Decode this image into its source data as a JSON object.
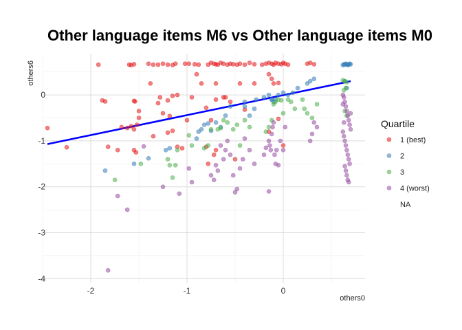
{
  "chart_data": {
    "type": "scatter",
    "title": "Other language items M6 vs Other language items M0",
    "xlabel": "others0",
    "ylabel": "others6",
    "xlim": [
      -2.5,
      0.85
    ],
    "ylim": [
      -4.1,
      0.9
    ],
    "x_ticks": [
      -2,
      -1,
      0
    ],
    "y_ticks": [
      -4,
      -3,
      -2,
      -1,
      0
    ],
    "grid": true,
    "legend_title": "Quartile",
    "legend_position": "right",
    "series": [
      {
        "name": "1 (best)",
        "color": "#E41A1C",
        "points": [
          [
            -2.45,
            -0.72
          ],
          [
            -2.25,
            -1.14
          ],
          [
            -1.92,
            0.66
          ],
          [
            -1.88,
            -0.12
          ],
          [
            -1.85,
            -0.14
          ],
          [
            -1.82,
            -1.13
          ],
          [
            -1.6,
            0.66
          ],
          [
            -1.58,
            0.65
          ],
          [
            -1.55,
            0.67
          ],
          [
            -1.55,
            -0.13
          ],
          [
            -1.54,
            -0.14
          ],
          [
            -1.68,
            -0.7
          ],
          [
            -1.62,
            -0.72
          ],
          [
            -1.58,
            -0.68
          ],
          [
            -1.55,
            -0.75
          ],
          [
            -1.52,
            -0.65
          ],
          [
            -1.5,
            -0.5
          ],
          [
            -1.55,
            -1.2
          ],
          [
            -1.53,
            -1.25
          ],
          [
            -1.72,
            -1.2
          ],
          [
            -1.4,
            0.68
          ],
          [
            -1.38,
            0.25
          ],
          [
            -1.35,
            0.66
          ],
          [
            -1.3,
            0.66
          ],
          [
            -1.25,
            0.68
          ],
          [
            -1.2,
            0.66
          ],
          [
            -1.15,
            0.65
          ],
          [
            -1.12,
            0.68
          ],
          [
            -1.28,
            -0.05
          ],
          [
            -1.2,
            -0.12
          ],
          [
            -1.15,
            -0.02
          ],
          [
            -1.1,
            0.0
          ],
          [
            -1.3,
            -0.18
          ],
          [
            -1.25,
            -0.4
          ],
          [
            -1.18,
            -0.46
          ],
          [
            -1.2,
            -0.82
          ],
          [
            -1.15,
            -0.78
          ],
          [
            -1.1,
            -1.13
          ],
          [
            -1.05,
            -1.16
          ],
          [
            -1.02,
            0.68
          ],
          [
            -0.98,
            0.68
          ],
          [
            -0.92,
            0.67
          ],
          [
            -0.88,
            0.66
          ],
          [
            -0.78,
            0.66
          ],
          [
            -0.75,
            0.7
          ],
          [
            -0.72,
            0.68
          ],
          [
            -0.7,
            0.67
          ],
          [
            -0.68,
            0.66
          ],
          [
            -0.65,
            0.7
          ],
          [
            -0.62,
            0.68
          ],
          [
            -0.58,
            0.66
          ],
          [
            -0.55,
            0.68
          ],
          [
            -0.52,
            0.67
          ],
          [
            -0.48,
            0.66
          ],
          [
            -0.45,
            0.68
          ],
          [
            -0.4,
            0.66
          ],
          [
            -0.35,
            0.7
          ],
          [
            -0.3,
            0.67
          ],
          [
            -0.22,
            0.66
          ],
          [
            -0.18,
            0.68
          ],
          [
            -0.15,
            0.7
          ],
          [
            -0.12,
            0.68
          ],
          [
            -0.1,
            0.66
          ],
          [
            -0.08,
            0.7
          ],
          [
            -0.05,
            0.68
          ],
          [
            -0.02,
            0.67
          ],
          [
            0.0,
            0.7
          ],
          [
            0.02,
            0.68
          ],
          [
            0.05,
            0.66
          ],
          [
            0.25,
            0.68
          ],
          [
            0.28,
            0.7
          ],
          [
            0.32,
            0.67
          ],
          [
            -0.9,
            0.45
          ],
          [
            -0.85,
            0.25
          ],
          [
            -0.7,
            0.25
          ],
          [
            -0.6,
            -0.05
          ],
          [
            -0.45,
            0.25
          ],
          [
            -0.3,
            0.25
          ],
          [
            -0.15,
            0.45
          ],
          [
            -0.12,
            0.35
          ],
          [
            -0.1,
            0.25
          ],
          [
            -0.05,
            0.26
          ],
          [
            -0.95,
            -0.05
          ],
          [
            -0.8,
            -0.28
          ],
          [
            -0.75,
            -0.55
          ],
          [
            -0.55,
            -0.15
          ],
          [
            -0.7,
            -0.1
          ],
          [
            -0.62,
            -0.05
          ],
          [
            -0.4,
            -0.32
          ],
          [
            -0.8,
            -1.13
          ],
          [
            -0.78,
            -1.5
          ],
          [
            -0.72,
            -1.3
          ],
          [
            -0.7,
            -1.2
          ],
          [
            -0.5,
            -1.4
          ],
          [
            -0.15,
            -0.8
          ],
          [
            -0.05,
            -0.52
          ],
          [
            0.0,
            -1.1
          ],
          [
            -1.0,
            -0.55
          ],
          [
            -1.35,
            -0.9
          ],
          [
            -1.5,
            -0.35
          ]
        ]
      },
      {
        "name": "2",
        "color": "#377EB8",
        "points": [
          [
            -1.85,
            -1.65
          ],
          [
            -1.55,
            -1.5
          ],
          [
            -1.4,
            -1.38
          ],
          [
            -1.22,
            -1.2
          ],
          [
            -1.18,
            -1.16
          ],
          [
            -0.9,
            -0.95
          ],
          [
            -0.88,
            -0.8
          ],
          [
            -0.85,
            -0.75
          ],
          [
            -0.82,
            -0.65
          ],
          [
            -0.78,
            -0.62
          ],
          [
            -0.75,
            -0.78
          ],
          [
            -0.7,
            -0.6
          ],
          [
            -0.65,
            -0.7
          ],
          [
            -0.6,
            -0.45
          ],
          [
            -0.55,
            -0.25
          ],
          [
            -0.4,
            -0.25
          ],
          [
            -0.35,
            -0.45
          ],
          [
            -0.3,
            -0.3
          ],
          [
            -0.28,
            -0.1
          ],
          [
            -0.2,
            -0.05
          ],
          [
            -0.15,
            0.0
          ],
          [
            -0.12,
            -0.1
          ],
          [
            -0.1,
            -0.15
          ],
          [
            -0.08,
            -0.1
          ],
          [
            -0.05,
            0.0
          ],
          [
            0.0,
            0.05
          ],
          [
            0.05,
            0.0
          ],
          [
            0.1,
            0.05
          ],
          [
            0.15,
            0.15
          ],
          [
            0.25,
            0.25
          ],
          [
            0.28,
            0.3
          ],
          [
            0.32,
            0.35
          ],
          [
            0.62,
            0.65
          ],
          [
            0.63,
            0.67
          ],
          [
            0.64,
            0.66
          ],
          [
            0.65,
            0.68
          ],
          [
            0.66,
            0.67
          ],
          [
            0.67,
            0.65
          ],
          [
            0.68,
            0.66
          ],
          [
            0.69,
            0.68
          ],
          [
            0.7,
            0.67
          ],
          [
            0.64,
            0.3
          ],
          [
            0.66,
            0.15
          ],
          [
            -0.4,
            -0.15
          ],
          [
            -0.12,
            -0.1
          ]
        ]
      },
      {
        "name": "3",
        "color": "#4DAF4A",
        "points": [
          [
            -1.75,
            -1.85
          ],
          [
            -1.48,
            -1.5
          ],
          [
            -1.2,
            -1.4
          ],
          [
            -1.18,
            -1.53
          ],
          [
            -1.12,
            -1.53
          ],
          [
            -1.1,
            -1.2
          ],
          [
            -0.98,
            -0.88
          ],
          [
            -0.82,
            -1.16
          ],
          [
            -0.78,
            -1.1
          ],
          [
            -0.75,
            -0.75
          ],
          [
            -0.68,
            -0.75
          ],
          [
            -0.65,
            -0.72
          ],
          [
            -0.62,
            -0.55
          ],
          [
            -0.58,
            -0.6
          ],
          [
            -0.52,
            -0.75
          ],
          [
            -0.48,
            -0.65
          ],
          [
            -0.45,
            -1.1
          ],
          [
            -0.4,
            -0.55
          ],
          [
            -0.35,
            -0.7
          ],
          [
            -0.18,
            -0.8
          ],
          [
            -0.15,
            -0.7
          ],
          [
            -0.12,
            -0.55
          ],
          [
            -0.1,
            -0.2
          ],
          [
            -0.08,
            -0.15
          ],
          [
            -0.05,
            -0.1
          ],
          [
            -0.02,
            -0.12
          ],
          [
            0.0,
            -0.4
          ],
          [
            0.05,
            -0.1
          ],
          [
            0.08,
            -0.15
          ],
          [
            0.12,
            -0.3
          ],
          [
            0.2,
            -0.1
          ],
          [
            0.22,
            -0.3
          ],
          [
            0.25,
            -0.4
          ],
          [
            0.3,
            -0.5
          ],
          [
            0.35,
            -0.2
          ],
          [
            0.62,
            0.32
          ],
          [
            0.64,
            0.3
          ],
          [
            0.66,
            0.28
          ],
          [
            0.65,
            0.15
          ],
          [
            0.63,
            0.1
          ],
          [
            0.64,
            -0.35
          ],
          [
            0.66,
            -0.45
          ],
          [
            -0.95,
            -1.1
          ],
          [
            -1.15,
            -1.8
          ]
        ]
      },
      {
        "name": "4 (worst)",
        "color": "#984EA3",
        "points": [
          [
            -1.82,
            -3.82
          ],
          [
            -1.72,
            -2.2
          ],
          [
            -1.62,
            -2.5
          ],
          [
            -1.45,
            -1.12
          ],
          [
            -1.25,
            -2.0
          ],
          [
            -1.08,
            -2.15
          ],
          [
            -0.98,
            -1.6
          ],
          [
            -0.95,
            -1.9
          ],
          [
            -0.75,
            -1.75
          ],
          [
            -0.72,
            -1.85
          ],
          [
            -0.7,
            -1.53
          ],
          [
            -0.68,
            -1.65
          ],
          [
            -0.65,
            -1.1
          ],
          [
            -0.62,
            -1.4
          ],
          [
            -0.6,
            -1.2
          ],
          [
            -0.58,
            -1.0
          ],
          [
            -0.55,
            -1.3
          ],
          [
            -0.52,
            -1.75
          ],
          [
            -0.5,
            -2.12
          ],
          [
            -0.48,
            -2.05
          ],
          [
            -0.45,
            -1.6
          ],
          [
            -0.42,
            -1.4
          ],
          [
            -0.4,
            -0.95
          ],
          [
            -0.35,
            -1.2
          ],
          [
            -0.3,
            -1.5
          ],
          [
            -0.2,
            -1.3
          ],
          [
            -0.18,
            -1.15
          ],
          [
            -0.15,
            -1.0
          ],
          [
            -0.14,
            -1.1
          ],
          [
            -0.13,
            -1.2
          ],
          [
            -0.12,
            -0.85
          ],
          [
            -0.11,
            -0.7
          ],
          [
            -0.1,
            -0.6
          ],
          [
            -0.09,
            -1.3
          ],
          [
            -0.08,
            -1.5
          ],
          [
            -0.07,
            -1.2
          ],
          [
            -0.05,
            -1.53
          ],
          [
            -0.03,
            -1.0
          ],
          [
            0.0,
            -1.2
          ],
          [
            0.02,
            -0.7
          ],
          [
            -0.15,
            -2.1
          ],
          [
            0.28,
            -1.0
          ],
          [
            0.3,
            -0.85
          ],
          [
            0.32,
            -0.6
          ],
          [
            0.35,
            -0.7
          ],
          [
            0.62,
            0.0
          ],
          [
            0.63,
            -0.05
          ],
          [
            0.64,
            -0.15
          ],
          [
            0.65,
            -0.25
          ],
          [
            0.66,
            -0.35
          ],
          [
            0.67,
            -0.45
          ],
          [
            0.68,
            -0.55
          ],
          [
            0.69,
            -0.65
          ],
          [
            0.7,
            -0.75
          ],
          [
            0.62,
            -0.8
          ],
          [
            0.63,
            -0.9
          ],
          [
            0.64,
            -1.0
          ],
          [
            0.65,
            -1.1
          ],
          [
            0.66,
            -1.2
          ],
          [
            0.67,
            -1.3
          ],
          [
            0.68,
            -1.4
          ],
          [
            0.69,
            -1.5
          ],
          [
            0.64,
            -1.55
          ],
          [
            0.65,
            -1.65
          ],
          [
            0.66,
            -1.75
          ],
          [
            0.67,
            -1.85
          ],
          [
            0.68,
            -1.9
          ],
          [
            0.63,
            -0.6
          ],
          [
            0.7,
            -0.4
          ],
          [
            0.62,
            -0.2
          ]
        ]
      },
      {
        "name": "NA",
        "color": "#999999",
        "points": []
      }
    ],
    "fit_line": {
      "color": "#0000FF",
      "x": [
        -2.45,
        0.7
      ],
      "y": [
        -1.07,
        0.3
      ]
    }
  }
}
